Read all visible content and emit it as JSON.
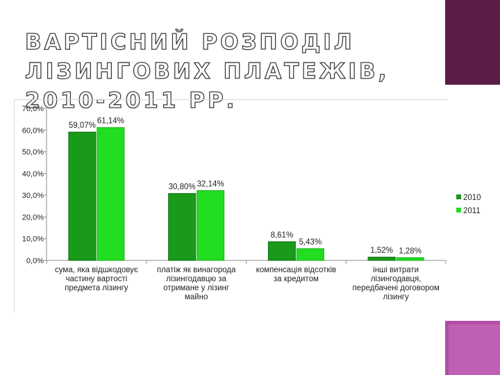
{
  "title": "ВАРТІСНИЙ РОЗПОДІЛ ЛІЗИНГОВИХ ПЛАТЕЖІВ, 2010-2011 РР.",
  "colors": {
    "s2010": "#1a9a1a",
    "s2011": "#22dd22",
    "deco_top": "#5a1e47",
    "deco_bottom": "#b44ca8"
  },
  "chart_data": {
    "type": "bar",
    "title": "",
    "xlabel": "",
    "ylabel": "",
    "ylim": [
      0,
      70
    ],
    "yticks": [
      "0,0%",
      "10,0%",
      "20,0%",
      "30,0%",
      "40,0%",
      "50,0%",
      "60,0%",
      "70,0%"
    ],
    "grid": false,
    "legend_position": "right",
    "categories": [
      [
        "сума, яка відшкодовує",
        "частину вартості",
        "предмета лізингу"
      ],
      [
        "платіж як винагорода",
        "лізингодавцю за",
        "отримане у лізинг",
        "майно"
      ],
      [
        "компенсація відсотків",
        "за кредитом"
      ],
      [
        "інші витрати",
        "лізингодавця,",
        "передбачені договором",
        "лізингу"
      ]
    ],
    "series": [
      {
        "name": "2010",
        "values": [
          59.07,
          30.8,
          8.61,
          1.52
        ],
        "labels": [
          "59,07%",
          "30,80%",
          "8,61%",
          "1,52%"
        ]
      },
      {
        "name": "2011",
        "values": [
          61.14,
          32.14,
          5.43,
          1.28
        ],
        "labels": [
          "61,14%",
          "32,14%",
          "5,43%",
          "1,28%"
        ]
      }
    ]
  }
}
